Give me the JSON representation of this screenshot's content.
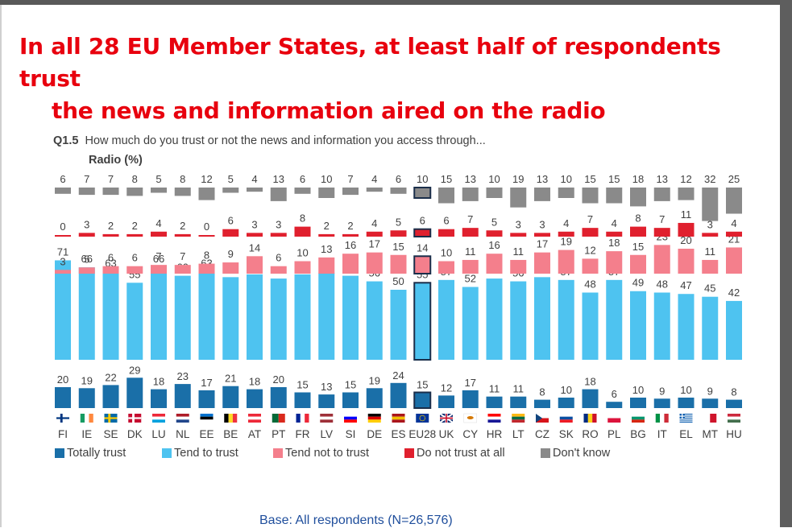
{
  "headline": {
    "line1": "In all 28 EU Member States, at least half of respondents trust",
    "line2": "the news and information aired on the radio"
  },
  "question": {
    "code": "Q1.5",
    "text": "How much do you trust or not the news and information you access through...",
    "subtitle": "Radio (%)"
  },
  "base": "Base: All respondents (N=26,576)",
  "colors": {
    "totally_trust": "#1a6fa8",
    "tend_to_trust": "#4ec3f0",
    "tend_not_to_trust": "#f47f8c",
    "do_not_trust_at_all": "#e0202e",
    "dont_know": "#8a8a8a",
    "eu28_outline": "#1a2e4a",
    "label_text": "#404040"
  },
  "chart_data": {
    "type": "bar",
    "stacked": true,
    "categories": [
      "FI",
      "IE",
      "SE",
      "DK",
      "LU",
      "NL",
      "EE",
      "BE",
      "AT",
      "PT",
      "FR",
      "LV",
      "SI",
      "DE",
      "ES",
      "EU28",
      "UK",
      "CY",
      "HR",
      "LT",
      "CZ",
      "SK",
      "RO",
      "PL",
      "BG",
      "IT",
      "EL",
      "MT",
      "HU"
    ],
    "highlight_category": "EU28",
    "series": [
      {
        "name": "Totally trust",
        "values": [
          20,
          19,
          22,
          29,
          18,
          23,
          17,
          21,
          18,
          20,
          15,
          13,
          15,
          19,
          24,
          15,
          12,
          17,
          11,
          11,
          8,
          10,
          18,
          6,
          10,
          9,
          10,
          9,
          8
        ]
      },
      {
        "name": "Tend to trust",
        "values": [
          71,
          66,
          63,
          55,
          66,
          60,
          63,
          59,
          61,
          58,
          61,
          62,
          60,
          56,
          50,
          55,
          57,
          52,
          58,
          56,
          59,
          57,
          48,
          57,
          49,
          48,
          47,
          45,
          42
        ]
      },
      {
        "name": "Tend not to trust",
        "values": [
          3,
          5,
          6,
          6,
          7,
          7,
          8,
          9,
          14,
          6,
          10,
          13,
          16,
          17,
          15,
          14,
          10,
          11,
          16,
          11,
          17,
          19,
          12,
          18,
          15,
          23,
          20,
          11,
          21
        ]
      },
      {
        "name": "Do not trust at all",
        "values": [
          0,
          3,
          2,
          2,
          4,
          2,
          0,
          6,
          3,
          3,
          8,
          2,
          2,
          4,
          5,
          6,
          6,
          7,
          5,
          3,
          3,
          4,
          7,
          4,
          8,
          7,
          11,
          3,
          4
        ]
      },
      {
        "name": "Don't know",
        "values": [
          6,
          7,
          7,
          8,
          5,
          8,
          12,
          5,
          4,
          13,
          6,
          10,
          7,
          4,
          6,
          10,
          15,
          13,
          10,
          19,
          13,
          10,
          15,
          15,
          18,
          13,
          12,
          32,
          25
        ]
      }
    ]
  },
  "flags": {
    "FI": {
      "type": "nordic",
      "bg": "#ffffff",
      "cross": "#003580"
    },
    "IE": {
      "type": "v3",
      "c": [
        "#169b62",
        "#ffffff",
        "#ff883e"
      ]
    },
    "SE": {
      "type": "nordic",
      "bg": "#006aa7",
      "cross": "#fecc00"
    },
    "DK": {
      "type": "nordic",
      "bg": "#c60c30",
      "cross": "#ffffff"
    },
    "LU": {
      "type": "h3",
      "c": [
        "#ed2939",
        "#ffffff",
        "#00a1de"
      ]
    },
    "NL": {
      "type": "h3",
      "c": [
        "#ae1c28",
        "#ffffff",
        "#21468b"
      ]
    },
    "EE": {
      "type": "h3",
      "c": [
        "#0072ce",
        "#000000",
        "#ffffff"
      ]
    },
    "BE": {
      "type": "v3",
      "c": [
        "#000000",
        "#fdda24",
        "#ef3340"
      ]
    },
    "AT": {
      "type": "h3",
      "c": [
        "#ed2939",
        "#ffffff",
        "#ed2939"
      ]
    },
    "PT": {
      "type": "v2",
      "c": [
        "#046a38",
        "#da291c"
      ]
    },
    "FR": {
      "type": "v3",
      "c": [
        "#002395",
        "#ffffff",
        "#ed2939"
      ]
    },
    "LV": {
      "type": "h3",
      "c": [
        "#9e3039",
        "#ffffff",
        "#9e3039"
      ]
    },
    "SI": {
      "type": "h3",
      "c": [
        "#ffffff",
        "#0000ff",
        "#ff0000"
      ]
    },
    "DE": {
      "type": "h3",
      "c": [
        "#000000",
        "#dd0000",
        "#ffce00"
      ]
    },
    "ES": {
      "type": "h3",
      "c": [
        "#aa151b",
        "#f1bf00",
        "#aa151b"
      ]
    },
    "EU28": {
      "type": "solid",
      "c": [
        "#003399"
      ]
    },
    "UK": {
      "type": "uk",
      "c": [
        "#012169",
        "#ffffff",
        "#c8102e"
      ]
    },
    "CY": {
      "type": "solid",
      "c": [
        "#ffffff"
      ]
    },
    "HR": {
      "type": "h3",
      "c": [
        "#ff0000",
        "#ffffff",
        "#171796"
      ]
    },
    "LT": {
      "type": "h3",
      "c": [
        "#fdb913",
        "#006a44",
        "#c1272d"
      ]
    },
    "CZ": {
      "type": "cz",
      "c": [
        "#ffffff",
        "#d7141a",
        "#11457e"
      ]
    },
    "SK": {
      "type": "h3",
      "c": [
        "#ffffff",
        "#0b4ea2",
        "#ee1c25"
      ]
    },
    "RO": {
      "type": "v3",
      "c": [
        "#002b7f",
        "#fcd116",
        "#ce1126"
      ]
    },
    "PL": {
      "type": "h2",
      "c": [
        "#ffffff",
        "#dc143c"
      ]
    },
    "BG": {
      "type": "h3",
      "c": [
        "#ffffff",
        "#00966e",
        "#d62612"
      ]
    },
    "IT": {
      "type": "v3",
      "c": [
        "#009246",
        "#ffffff",
        "#ce2b37"
      ]
    },
    "EL": {
      "type": "gr",
      "c": [
        "#0d5eaf",
        "#ffffff"
      ]
    },
    "MT": {
      "type": "v2",
      "c": [
        "#ffffff",
        "#cf142b"
      ]
    },
    "HU": {
      "type": "h3",
      "c": [
        "#cd2a3e",
        "#ffffff",
        "#436f4d"
      ]
    }
  }
}
